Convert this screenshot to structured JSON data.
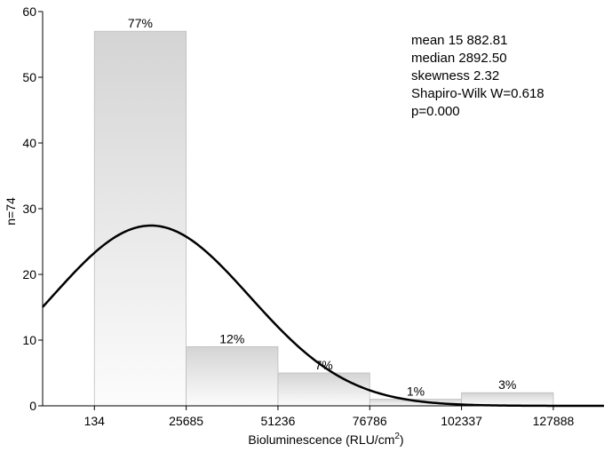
{
  "chart_data": {
    "type": "bar",
    "xlabel": "Bioluminescence (RLU/cm",
    "xlabel_sup": "2",
    "xlabel_close": ")",
    "ylabel": "n=74",
    "ylim": [
      0,
      60
    ],
    "xlim": [
      -14275,
      142000
    ],
    "yticks": [
      0,
      10,
      20,
      30,
      40,
      50,
      60
    ],
    "xticks": [
      134,
      25685,
      51236,
      76786,
      102337,
      127888
    ],
    "bins": [
      {
        "start": 134,
        "end": 25685,
        "count": 57,
        "label": "77%"
      },
      {
        "start": 25685,
        "end": 51236,
        "count": 9,
        "label": "12%"
      },
      {
        "start": 51236,
        "end": 76786,
        "count": 5,
        "label": "7%"
      },
      {
        "start": 76786,
        "end": 102337,
        "count": 1,
        "label": "1%"
      },
      {
        "start": 102337,
        "end": 127888,
        "count": 2,
        "label": "3%"
      }
    ],
    "normal_fit": {
      "mean": 15882.81,
      "sd": 27500,
      "n": 74,
      "bin_width": 25551
    },
    "stats": [
      "mean 15 882.81",
      "median 2892.50",
      "skewness 2.32",
      "Shapiro-Wilk W=0.618",
      "p=0.000"
    ],
    "colors": {
      "bar_top": "#d4d4d4",
      "bar_bottom": "#fcfcfc",
      "curve": "#000000"
    }
  }
}
